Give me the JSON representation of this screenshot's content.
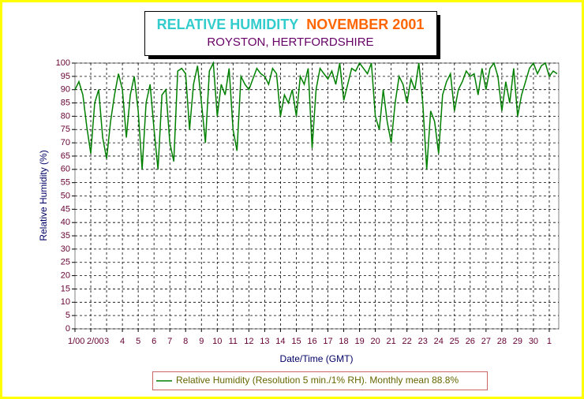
{
  "chart_data": {
    "type": "line",
    "title": [
      "RELATIVE HUMIDITY",
      "NOVEMBER 2001"
    ],
    "subtitle": "ROYSTON, HERTFORDSHIRE",
    "xlabel": "Date/Time (GMT)",
    "ylabel": "Relative Humidity (%)",
    "x": [
      1,
      1.25,
      1.5,
      1.75,
      2,
      2.25,
      2.5,
      2.75,
      3,
      3.25,
      3.5,
      3.75,
      4,
      4.25,
      4.5,
      4.75,
      5,
      5.25,
      5.5,
      5.75,
      6,
      6.25,
      6.5,
      6.75,
      7,
      7.25,
      7.5,
      7.75,
      8,
      8.25,
      8.5,
      8.75,
      9,
      9.25,
      9.5,
      9.75,
      10,
      10.25,
      10.5,
      10.75,
      11,
      11.25,
      11.5,
      11.75,
      12,
      12.25,
      12.5,
      12.75,
      13,
      13.25,
      13.5,
      13.75,
      14,
      14.25,
      14.5,
      14.75,
      15,
      15.25,
      15.5,
      15.75,
      16,
      16.25,
      16.5,
      16.75,
      17,
      17.25,
      17.5,
      17.75,
      18,
      18.25,
      18.5,
      18.75,
      19,
      19.25,
      19.5,
      19.75,
      20,
      20.25,
      20.5,
      20.75,
      21,
      21.25,
      21.5,
      21.75,
      22,
      22.25,
      22.5,
      22.75,
      23,
      23.25,
      23.5,
      23.75,
      24,
      24.25,
      24.5,
      24.75,
      25,
      25.25,
      25.5,
      25.75,
      26,
      26.25,
      26.5,
      26.75,
      27,
      27.25,
      27.5,
      27.75,
      28,
      28.25,
      28.5,
      28.75,
      29,
      29.25,
      29.5,
      29.75,
      30,
      30.25,
      30.5,
      30.75,
      31,
      31.25,
      31.5
    ],
    "series": [
      {
        "name": "Relative Humidity (Resolution 5 min./1% RH). Monthly mean 88.8%",
        "color": "#008000",
        "values": [
          90,
          93,
          88,
          76,
          66,
          85,
          90,
          72,
          64,
          78,
          88,
          96,
          90,
          72,
          88,
          95,
          82,
          60,
          85,
          92,
          75,
          60,
          88,
          90,
          70,
          63,
          97,
          98,
          96,
          75,
          92,
          99,
          85,
          70,
          97,
          100,
          80,
          92,
          88,
          98,
          75,
          67,
          95,
          92,
          90,
          94,
          98,
          96,
          95,
          92,
          98,
          96,
          80,
          88,
          85,
          90,
          80,
          95,
          92,
          98,
          68,
          90,
          98,
          96,
          94,
          97,
          92,
          100,
          86,
          92,
          98,
          97,
          100,
          98,
          96,
          100,
          80,
          75,
          90,
          78,
          70,
          85,
          95,
          92,
          85,
          94,
          90,
          100,
          85,
          60,
          82,
          78,
          66,
          88,
          93,
          96,
          82,
          90,
          93,
          97,
          95,
          96,
          88,
          98,
          90,
          98,
          100,
          95,
          82,
          93,
          85,
          98,
          80,
          88,
          93,
          98,
          100,
          96,
          99,
          100,
          95,
          97,
          96
        ]
      }
    ],
    "xlim": [
      1,
      31.6
    ],
    "xticks": [
      {
        "value": 1,
        "label": "1/00"
      },
      {
        "value": 2,
        "label": "2/00"
      },
      3,
      4,
      5,
      6,
      7,
      8,
      9,
      10,
      11,
      12,
      13,
      14,
      15,
      16,
      17,
      18,
      19,
      20,
      21,
      22,
      23,
      24,
      25,
      26,
      27,
      28,
      29,
      30,
      {
        "value": 31,
        "label": "1"
      }
    ],
    "ylim": [
      0,
      100
    ],
    "yticks": [
      0,
      5,
      10,
      15,
      20,
      25,
      30,
      35,
      40,
      45,
      50,
      55,
      60,
      65,
      70,
      75,
      80,
      85,
      90,
      95,
      100
    ],
    "grid": true
  }
}
